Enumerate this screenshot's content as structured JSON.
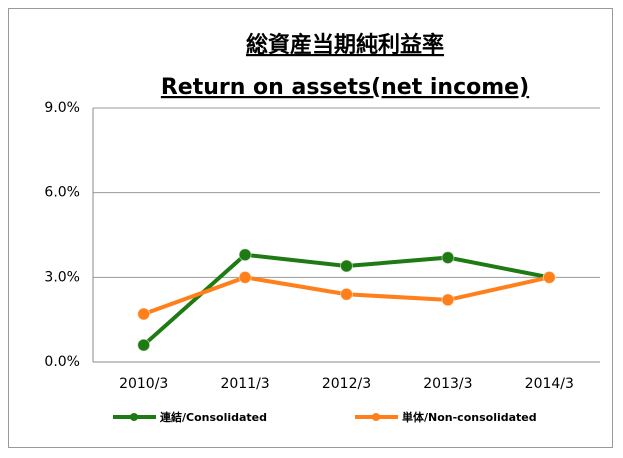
{
  "chart_data": {
    "type": "line",
    "title": [
      "総資産当期純利益率",
      "Return on assets(net income)"
    ],
    "categories": [
      "2010/3",
      "2011/3",
      "2012/3",
      "2013/3",
      "2014/3"
    ],
    "series": [
      {
        "name": "連結/Consolidated",
        "color": "#1e7a12",
        "values": [
          0.6,
          3.8,
          3.4,
          3.7,
          3.0
        ]
      },
      {
        "name": "単体/Non-consolidated",
        "color": "#ff7f1a",
        "values": [
          1.7,
          3.0,
          2.4,
          2.2,
          3.0
        ]
      }
    ],
    "ylim": [
      0,
      9
    ],
    "yticks": [
      {
        "value": 0,
        "label": "0.0%"
      },
      {
        "value": 3,
        "label": "3.0%"
      },
      {
        "value": 6,
        "label": "6.0%"
      },
      {
        "value": 9,
        "label": "9.0%"
      }
    ],
    "grid": true,
    "legend": "bottom"
  }
}
